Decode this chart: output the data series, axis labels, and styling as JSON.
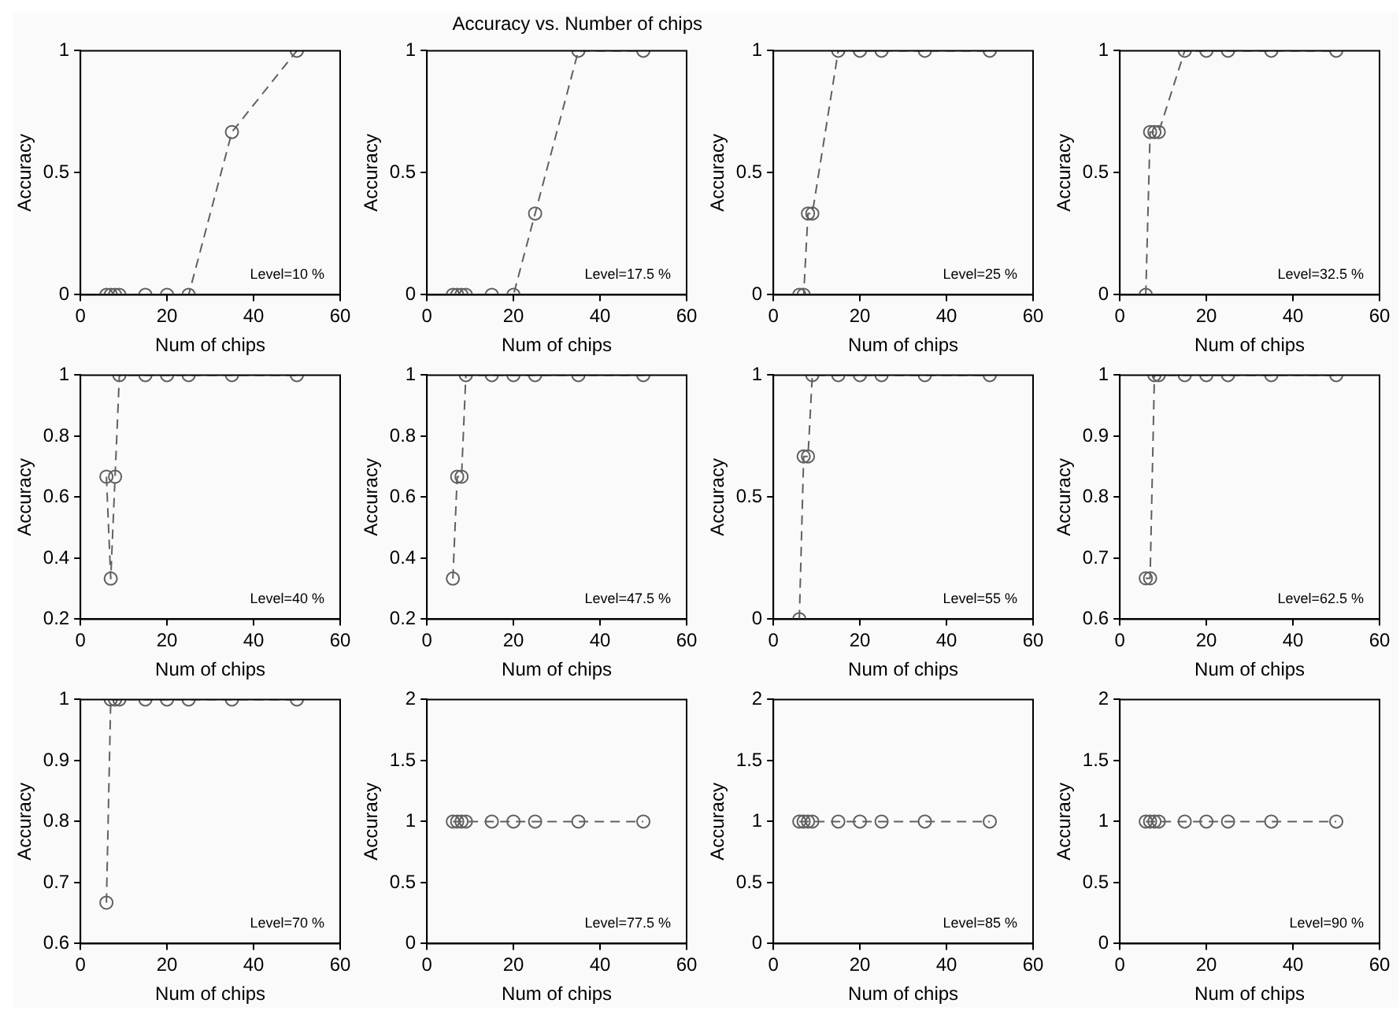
{
  "chart_data": [
    {
      "type": "line",
      "xlabel": "Num of chips",
      "ylabel": "Accuracy",
      "annotations": [
        "Level=10 %"
      ],
      "x": [
        6,
        7,
        8,
        9,
        15,
        20,
        25,
        35,
        50
      ],
      "series": [
        {
          "color": "#606060",
          "values": [
            0,
            0,
            0,
            0,
            0,
            0,
            0,
            0.667,
            1
          ]
        }
      ],
      "xlim": [
        0,
        60
      ],
      "xticks": [
        0,
        20,
        40,
        60
      ],
      "ylim": [
        0,
        1
      ],
      "yticks": [
        0,
        0.5,
        1
      ],
      "marker": "circle",
      "line_style": "dashed",
      "grid": false,
      "legend": false
    },
    {
      "type": "line",
      "title": "Accuracy vs. Number of chips",
      "xlabel": "Num of chips",
      "ylabel": "Accuracy",
      "annotations": [
        "Level=17.5 %"
      ],
      "x": [
        6,
        7,
        8,
        9,
        15,
        20,
        25,
        35,
        50
      ],
      "series": [
        {
          "color": "#606060",
          "values": [
            0,
            0,
            0,
            0,
            0,
            0,
            0.333,
            1,
            1
          ]
        }
      ],
      "xlim": [
        0,
        60
      ],
      "xticks": [
        0,
        20,
        40,
        60
      ],
      "ylim": [
        0,
        1
      ],
      "yticks": [
        0,
        0.5,
        1
      ],
      "marker": "circle",
      "line_style": "dashed",
      "grid": false,
      "legend": false
    },
    {
      "type": "line",
      "xlabel": "Num of chips",
      "ylabel": "Accuracy",
      "annotations": [
        "Level=25 %"
      ],
      "x": [
        6,
        7,
        8,
        9,
        15,
        20,
        25,
        35,
        50
      ],
      "series": [
        {
          "color": "#606060",
          "values": [
            0,
            0,
            0.333,
            0.333,
            1,
            1,
            1,
            1,
            1
          ]
        }
      ],
      "xlim": [
        0,
        60
      ],
      "xticks": [
        0,
        20,
        40,
        60
      ],
      "ylim": [
        0,
        1
      ],
      "yticks": [
        0,
        0.5,
        1
      ],
      "marker": "circle",
      "line_style": "dashed",
      "grid": false,
      "legend": false
    },
    {
      "type": "line",
      "xlabel": "Num of chips",
      "ylabel": "Accuracy",
      "annotations": [
        "Level=32.5 %"
      ],
      "x": [
        6,
        7,
        8,
        9,
        15,
        20,
        25,
        35,
        50
      ],
      "series": [
        {
          "color": "#606060",
          "values": [
            0,
            0.667,
            0.667,
            0.667,
            1,
            1,
            1,
            1,
            1
          ]
        }
      ],
      "xlim": [
        0,
        60
      ],
      "xticks": [
        0,
        20,
        40,
        60
      ],
      "ylim": [
        0,
        1
      ],
      "yticks": [
        0,
        0.5,
        1
      ],
      "marker": "circle",
      "line_style": "dashed",
      "grid": false,
      "legend": false
    },
    {
      "type": "line",
      "xlabel": "Num of chips",
      "ylabel": "Accuracy",
      "annotations": [
        "Level=40 %"
      ],
      "x": [
        6,
        7,
        8,
        9,
        15,
        20,
        25,
        35,
        50
      ],
      "series": [
        {
          "color": "#606060",
          "values": [
            0.667,
            0.333,
            0.667,
            1,
            1,
            1,
            1,
            1,
            1
          ]
        }
      ],
      "xlim": [
        0,
        60
      ],
      "xticks": [
        0,
        20,
        40,
        60
      ],
      "ylim": [
        0.2,
        1
      ],
      "yticks": [
        0.2,
        0.4,
        0.6,
        0.8,
        1
      ],
      "marker": "circle",
      "line_style": "dashed",
      "grid": false,
      "legend": false
    },
    {
      "type": "line",
      "xlabel": "Num of chips",
      "ylabel": "Accuracy",
      "annotations": [
        "Level=47.5 %"
      ],
      "x": [
        6,
        7,
        8,
        9,
        15,
        20,
        25,
        35,
        50
      ],
      "series": [
        {
          "color": "#606060",
          "values": [
            0.333,
            0.667,
            0.667,
            1,
            1,
            1,
            1,
            1,
            1
          ]
        }
      ],
      "xlim": [
        0,
        60
      ],
      "xticks": [
        0,
        20,
        40,
        60
      ],
      "ylim": [
        0.2,
        1
      ],
      "yticks": [
        0.2,
        0.4,
        0.6,
        0.8,
        1
      ],
      "marker": "circle",
      "line_style": "dashed",
      "grid": false,
      "legend": false
    },
    {
      "type": "line",
      "xlabel": "Num of chips",
      "ylabel": "Accuracy",
      "annotations": [
        "Level=55 %"
      ],
      "x": [
        6,
        7,
        8,
        9,
        15,
        20,
        25,
        35,
        50
      ],
      "series": [
        {
          "color": "#606060",
          "values": [
            0,
            0.667,
            0.667,
            1,
            1,
            1,
            1,
            1,
            1
          ]
        }
      ],
      "xlim": [
        0,
        60
      ],
      "xticks": [
        0,
        20,
        40,
        60
      ],
      "ylim": [
        0,
        1
      ],
      "yticks": [
        0,
        0.5,
        1
      ],
      "marker": "circle",
      "line_style": "dashed",
      "grid": false,
      "legend": false
    },
    {
      "type": "line",
      "xlabel": "Num of chips",
      "ylabel": "Accuracy",
      "annotations": [
        "Level=62.5 %"
      ],
      "x": [
        6,
        7,
        8,
        9,
        15,
        20,
        25,
        35,
        50
      ],
      "series": [
        {
          "color": "#606060",
          "values": [
            0.667,
            0.667,
            1,
            1,
            1,
            1,
            1,
            1,
            1
          ]
        }
      ],
      "xlim": [
        0,
        60
      ],
      "xticks": [
        0,
        20,
        40,
        60
      ],
      "ylim": [
        0.6,
        1
      ],
      "yticks": [
        0.6,
        0.7,
        0.8,
        0.9,
        1
      ],
      "marker": "circle",
      "line_style": "dashed",
      "grid": false,
      "legend": false
    },
    {
      "type": "line",
      "xlabel": "Num of chips",
      "ylabel": "Accuracy",
      "annotations": [
        "Level=70 %"
      ],
      "x": [
        6,
        7,
        8,
        9,
        15,
        20,
        25,
        35,
        50
      ],
      "series": [
        {
          "color": "#606060",
          "values": [
            0.667,
            1,
            1,
            1,
            1,
            1,
            1,
            1,
            1
          ]
        }
      ],
      "xlim": [
        0,
        60
      ],
      "xticks": [
        0,
        20,
        40,
        60
      ],
      "ylim": [
        0.6,
        1
      ],
      "yticks": [
        0.6,
        0.7,
        0.8,
        0.9,
        1
      ],
      "marker": "circle",
      "line_style": "dashed",
      "grid": false,
      "legend": false
    },
    {
      "type": "line",
      "xlabel": "Num of chips",
      "ylabel": "Accuracy",
      "annotations": [
        "Level=77.5 %"
      ],
      "x": [
        6,
        7,
        8,
        9,
        15,
        20,
        25,
        35,
        50
      ],
      "series": [
        {
          "color": "#606060",
          "values": [
            1,
            1,
            1,
            1,
            1,
            1,
            1,
            1,
            1
          ]
        }
      ],
      "xlim": [
        0,
        60
      ],
      "xticks": [
        0,
        20,
        40,
        60
      ],
      "ylim": [
        0,
        2
      ],
      "yticks": [
        0,
        0.5,
        1,
        1.5,
        2
      ],
      "marker": "circle",
      "line_style": "dashed",
      "grid": false,
      "legend": false
    },
    {
      "type": "line",
      "xlabel": "Num of chips",
      "ylabel": "Accuracy",
      "annotations": [
        "Level=85 %"
      ],
      "x": [
        6,
        7,
        8,
        9,
        15,
        20,
        25,
        35,
        50
      ],
      "series": [
        {
          "color": "#606060",
          "values": [
            1,
            1,
            1,
            1,
            1,
            1,
            1,
            1,
            1
          ]
        }
      ],
      "xlim": [
        0,
        60
      ],
      "xticks": [
        0,
        20,
        40,
        60
      ],
      "ylim": [
        0,
        2
      ],
      "yticks": [
        0,
        0.5,
        1,
        1.5,
        2
      ],
      "marker": "circle",
      "line_style": "dashed",
      "grid": false,
      "legend": false
    },
    {
      "type": "line",
      "xlabel": "Num of chips",
      "ylabel": "Accuracy",
      "annotations": [
        "Level=90 %"
      ],
      "x": [
        6,
        7,
        8,
        9,
        15,
        20,
        25,
        35,
        50
      ],
      "series": [
        {
          "color": "#606060",
          "values": [
            1,
            1,
            1,
            1,
            1,
            1,
            1,
            1,
            1
          ]
        }
      ],
      "xlim": [
        0,
        60
      ],
      "xticks": [
        0,
        20,
        40,
        60
      ],
      "ylim": [
        0,
        2
      ],
      "yticks": [
        0,
        0.5,
        1,
        1.5,
        2
      ],
      "marker": "circle",
      "line_style": "dashed",
      "grid": false,
      "legend": false
    }
  ]
}
